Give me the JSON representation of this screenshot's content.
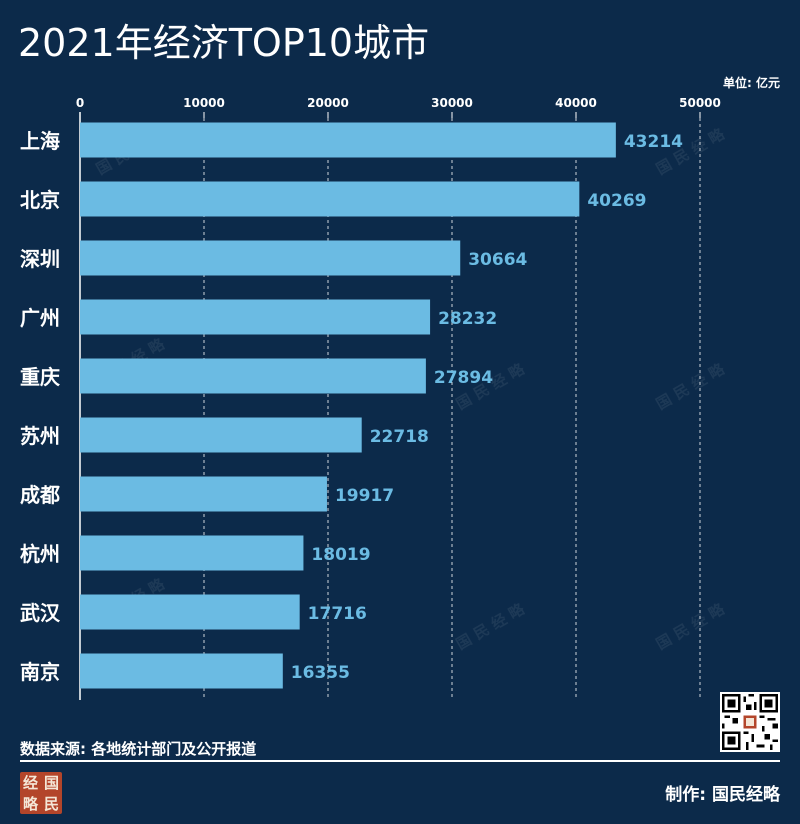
{
  "title": "2021年经济TOP10城市",
  "unit": "单位: 亿元",
  "source": "数据来源: 各地统计部门及公开报道",
  "credit": "制作:  国民经略",
  "logo": {
    "chars": [
      "经",
      "国",
      "略",
      "民"
    ],
    "color": "#b3452a"
  },
  "qr_icon": "qr-code-icon",
  "watermark": "国 民 经 略",
  "colors": {
    "background": "#0c2a4a",
    "bar": "#6bbbe3",
    "value_label": "#6bbbe3",
    "text": "#ffffff"
  },
  "chart_data": {
    "type": "bar",
    "orientation": "horizontal",
    "title": "2021年经济TOP10城市",
    "unit": "单位: 亿元",
    "categories": [
      "上海",
      "北京",
      "深圳",
      "广州",
      "重庆",
      "苏州",
      "成都",
      "杭州",
      "武汉",
      "南京"
    ],
    "values": [
      43214,
      40269,
      30664,
      28232,
      27894,
      22718,
      19917,
      18019,
      17716,
      16355
    ],
    "xlim": [
      0,
      50000
    ],
    "ticks": [
      "0",
      "10000",
      "20000",
      "30000",
      "40000",
      "50000"
    ],
    "grid": true,
    "axis_position": "top"
  }
}
